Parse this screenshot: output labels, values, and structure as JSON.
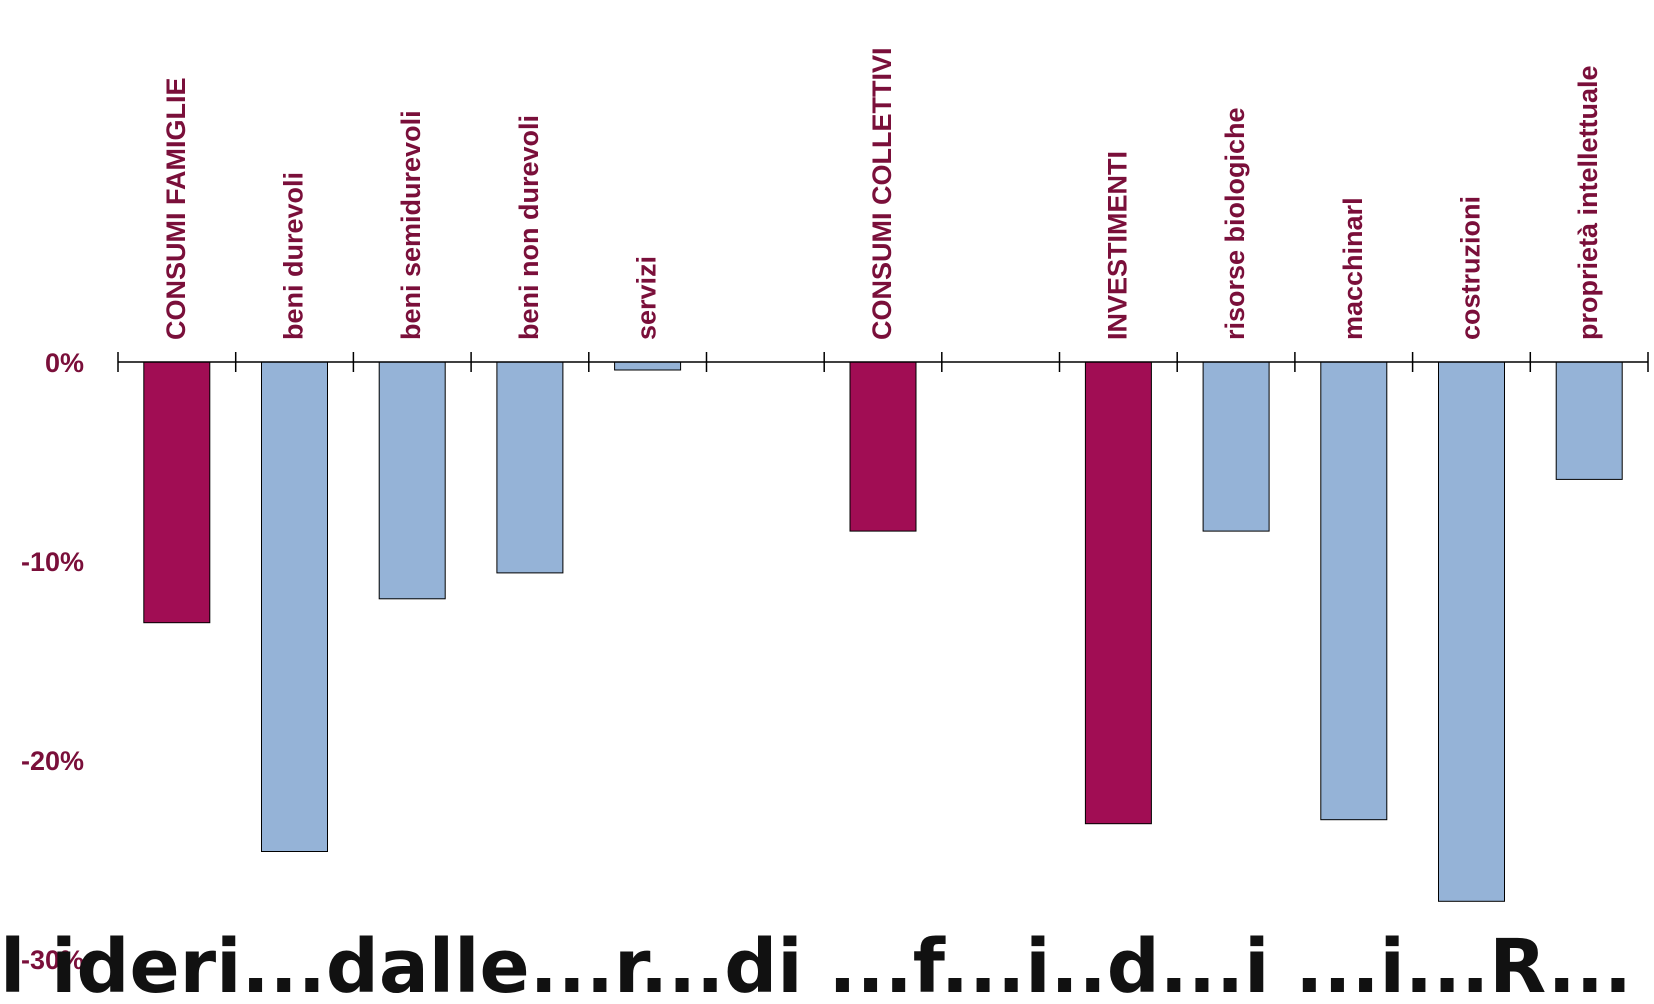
{
  "chart_data": {
    "type": "bar",
    "title": "",
    "xlabel": "",
    "ylabel": "",
    "ylim": [
      -30,
      0
    ],
    "y_ticks": [
      0,
      -10,
      -20,
      -30
    ],
    "y_tick_labels": [
      "0%",
      "-10%",
      "-20%",
      "-30%"
    ],
    "grid": false,
    "legend": "none",
    "categories": [
      "CONSUMI FAMIGLIE",
      "beni durevoli",
      "beni semidurevoli",
      "beni non durevoli",
      "servizi",
      "",
      "CONSUMI COLLETTIVI",
      "",
      "INVESTIMENTI",
      "risorse biologiche",
      "macchinarl",
      "costruzioni",
      "proprietà intellettuale"
    ],
    "values": [
      -13.1,
      -24.6,
      -11.9,
      -10.6,
      -0.4,
      null,
      -8.5,
      null,
      -23.2,
      -8.5,
      -23.0,
      -27.1,
      -5.9
    ],
    "bar_groups": [
      "aggregate",
      "component",
      "component",
      "component",
      "component",
      "gap",
      "aggregate",
      "gap",
      "aggregate",
      "component",
      "component",
      "component",
      "component"
    ],
    "colors": {
      "aggregate": "#A10D54",
      "component": "#95B3D7",
      "label_text": "#7A0F3A",
      "axis": "#000000"
    }
  },
  "caption": {
    "text": "l ideri...dalle...r...di ...f...i..d...i ...i...R..."
  }
}
